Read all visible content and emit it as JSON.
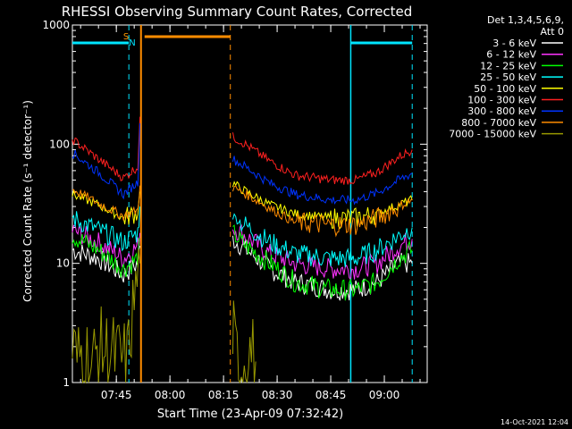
{
  "chart_data": {
    "type": "line",
    "title": "RHESSI Observing Summary Count Rates, Corrected",
    "xlabel": "Start Time (23-Apr-09 07:32:42)",
    "ylabel": "Corrected Count Rate (s⁻¹ detector⁻¹)",
    "yscale": "log",
    "ylim": [
      1,
      1000
    ],
    "y_ticks": [
      {
        "label": "1000",
        "value": 1000
      },
      {
        "label": "100",
        "value": 100
      },
      {
        "label": "10",
        "value": 10
      },
      {
        "label": "1",
        "value": 1
      }
    ],
    "xlim": [
      "07:32:42",
      "09:12:00"
    ],
    "x_ticks": [
      "07:45",
      "08:00",
      "08:15",
      "08:30",
      "08:45",
      "09:00"
    ],
    "x_tick_minutes": [
      45,
      60,
      75,
      90,
      105,
      120
    ],
    "x_min_minutes": 32.7,
    "x_max_minutes": 132,
    "legend_header": [
      "Det 1,3,4,5,6,9,",
      "Att 0"
    ],
    "legend_position": "right",
    "flag_labels": [
      {
        "text": "S",
        "color": "#ff9900"
      },
      {
        "text": "N",
        "color": "#00e5ff"
      }
    ],
    "footer": "14-Oct-2021 12:04",
    "gaps_minutes": [
      [
        51.6,
        77.6
      ]
    ],
    "eclipse_boundaries_minutes": [
      48.5,
      51.9,
      76.9,
      110.6,
      127.8
    ],
    "series": [
      {
        "name": "3 - 6 keV",
        "color": "#ffffff",
        "minutes": [
          32.7,
          40,
          47,
          51,
          51.6,
          77.6,
          80,
          88,
          95,
          105,
          112,
          118,
          124,
          127.8
        ],
        "values": [
          13,
          11,
          8,
          10,
          14,
          16,
          14,
          9,
          7,
          6,
          6,
          7,
          10,
          10
        ]
      },
      {
        "name": "6 - 12 keV",
        "color": "#ff33ff",
        "minutes": [
          32.7,
          40,
          47,
          51,
          51.6,
          77.6,
          80,
          88,
          95,
          105,
          112,
          118,
          124,
          127.8
        ],
        "values": [
          19,
          15,
          11,
          14,
          18,
          20,
          18,
          12,
          10,
          9,
          9,
          10,
          14,
          16
        ]
      },
      {
        "name": "12 - 25 keV",
        "color": "#00ff00",
        "minutes": [
          32.7,
          40,
          47,
          51,
          51.6,
          77.6,
          80,
          88,
          95,
          105,
          112,
          118,
          124,
          127.8
        ],
        "values": [
          17,
          13,
          9,
          11,
          16,
          18,
          15,
          10,
          7,
          6,
          6,
          7,
          11,
          13
        ]
      },
      {
        "name": "25 - 50 keV",
        "color": "#00ffff",
        "minutes": [
          32.7,
          40,
          47,
          51,
          51.6,
          77.6,
          80,
          88,
          95,
          105,
          112,
          118,
          124,
          127.8
        ],
        "values": [
          24,
          19,
          15,
          18,
          30,
          25,
          22,
          15,
          12,
          11,
          11,
          13,
          17,
          20
        ]
      },
      {
        "name": "50 - 100 keV",
        "color": "#ffff00",
        "minutes": [
          32.7,
          40,
          47,
          51,
          51.6,
          77.6,
          80,
          88,
          95,
          105,
          112,
          118,
          124,
          127.8
        ],
        "values": [
          38,
          31,
          24,
          27,
          40,
          47,
          42,
          31,
          26,
          24,
          24,
          26,
          31,
          34
        ]
      },
      {
        "name": "100 - 300 keV",
        "color": "#ff2020",
        "minutes": [
          32.7,
          40,
          47,
          51,
          51.6,
          77.6,
          80,
          88,
          95,
          105,
          112,
          118,
          124,
          127.8
        ],
        "values": [
          110,
          75,
          52,
          65,
          170,
          115,
          105,
          72,
          55,
          50,
          50,
          58,
          78,
          90
        ]
      },
      {
        "name": "300 - 800 keV",
        "color": "#0033ff",
        "minutes": [
          32.7,
          40,
          47,
          51,
          51.6,
          77.6,
          80,
          88,
          95,
          105,
          112,
          118,
          124,
          127.8
        ],
        "values": [
          85,
          58,
          38,
          48,
          150,
          75,
          68,
          47,
          38,
          34,
          34,
          39,
          50,
          57
        ]
      },
      {
        "name": "800 - 7000 keV",
        "color": "#ff8c00",
        "minutes": [
          32.7,
          40,
          47,
          51,
          51.6,
          77.6,
          80,
          88,
          95,
          105,
          112,
          118,
          124,
          127.8
        ],
        "values": [
          42,
          32,
          25,
          28,
          45,
          43,
          40,
          29,
          22,
          21,
          21,
          24,
          30,
          34
        ]
      },
      {
        "name": "7000 - 15000 keV",
        "color": "#999900",
        "minutes": [
          32.7,
          34,
          36,
          38,
          40,
          48,
          50,
          51.6,
          77.6,
          78,
          80,
          82,
          84
        ],
        "values": [
          2,
          1.5,
          2,
          1.3,
          2,
          1.5,
          5,
          10,
          3,
          2,
          1.3,
          2,
          1.5
        ]
      }
    ]
  }
}
